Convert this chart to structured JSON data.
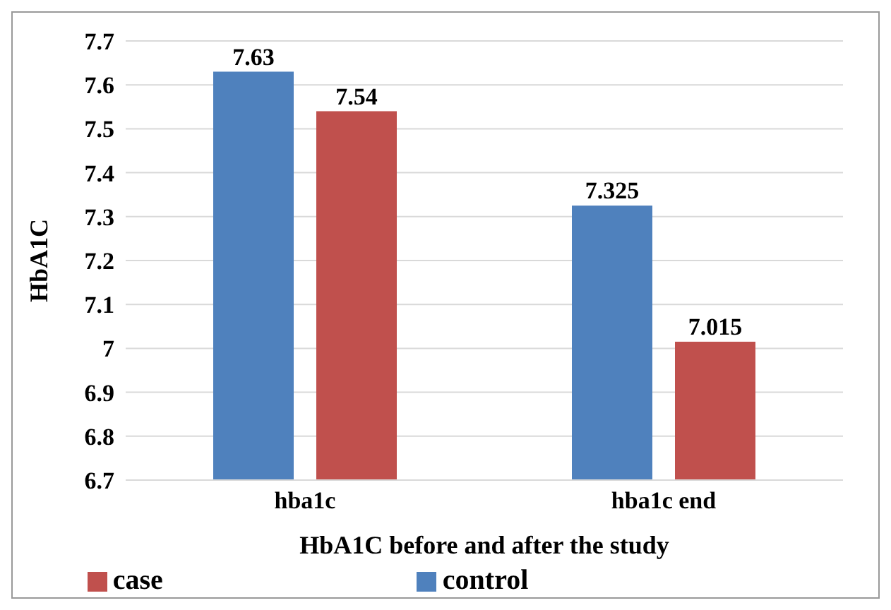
{
  "chart_data": {
    "type": "bar",
    "xlabel": "HbA1C before and after the study",
    "ylabel": "HbA1C",
    "categories": [
      "hba1c",
      "hba1c end"
    ],
    "series": [
      {
        "name": "control",
        "color": "#4f81bd",
        "values": [
          7.63,
          7.325
        ]
      },
      {
        "name": "case",
        "color": "#c0504d",
        "values": [
          7.54,
          7.015
        ]
      }
    ],
    "ylim": [
      6.7,
      7.7
    ],
    "yticks": [
      6.7,
      6.8,
      6.9,
      7,
      7.1,
      7.2,
      7.3,
      7.4,
      7.5,
      7.6,
      7.7
    ],
    "grid": "y",
    "legend": "bottom",
    "data_labels": true
  }
}
